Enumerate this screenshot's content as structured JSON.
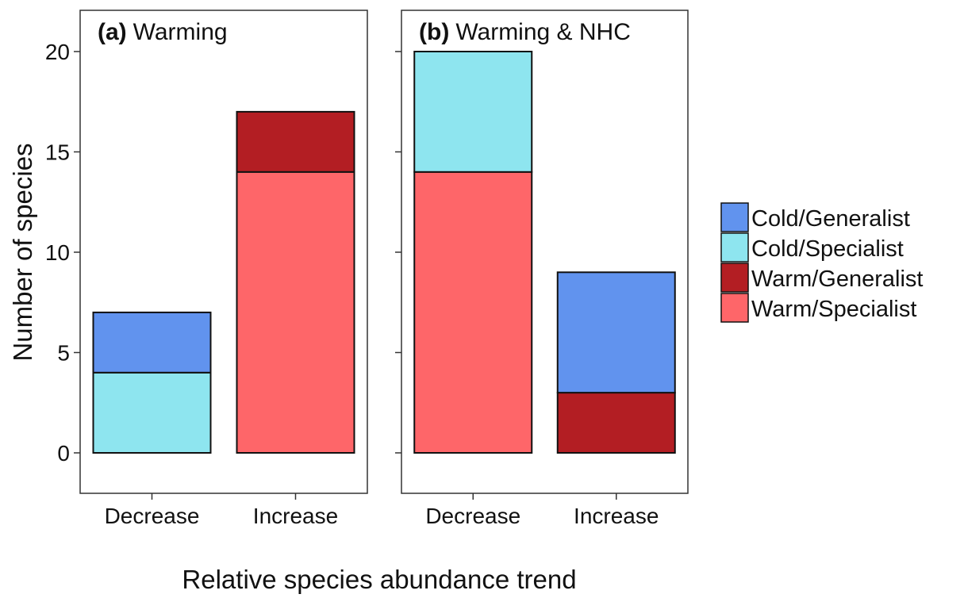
{
  "chart_data": {
    "type": "bar",
    "stacked": true,
    "xlabel": "Relative species abundance trend",
    "ylabel": "Number of species",
    "ylim": [
      -2,
      22
    ],
    "yticks": [
      0,
      5,
      10,
      15,
      20
    ],
    "grid": false,
    "legend_position": "right",
    "legend": [
      {
        "name": "Cold/Generalist",
        "color": "#6193EE"
      },
      {
        "name": "Cold/Specialist",
        "color": "#8EE5EF"
      },
      {
        "name": "Warm/Generalist",
        "color": "#B31E23"
      },
      {
        "name": "Warm/Specialist",
        "color": "#FE6669"
      }
    ],
    "panels": [
      {
        "tag": "(a)",
        "title": "Warming",
        "categories": [
          "Decrease",
          "Increase"
        ],
        "series": [
          {
            "name": "Cold/Specialist",
            "values": [
              4,
              0
            ]
          },
          {
            "name": "Cold/Generalist",
            "values": [
              3,
              0
            ]
          },
          {
            "name": "Warm/Specialist",
            "values": [
              0,
              14
            ]
          },
          {
            "name": "Warm/Generalist",
            "values": [
              0,
              3
            ]
          }
        ]
      },
      {
        "tag": "(b)",
        "title": "Warming & NHC",
        "categories": [
          "Decrease",
          "Increase"
        ],
        "series": [
          {
            "name": "Warm/Specialist",
            "values": [
              14,
              0
            ]
          },
          {
            "name": "Cold/Specialist",
            "values": [
              6,
              0
            ]
          },
          {
            "name": "Warm/Generalist",
            "values": [
              0,
              3
            ]
          },
          {
            "name": "Cold/Generalist",
            "values": [
              0,
              6
            ]
          }
        ]
      }
    ]
  }
}
